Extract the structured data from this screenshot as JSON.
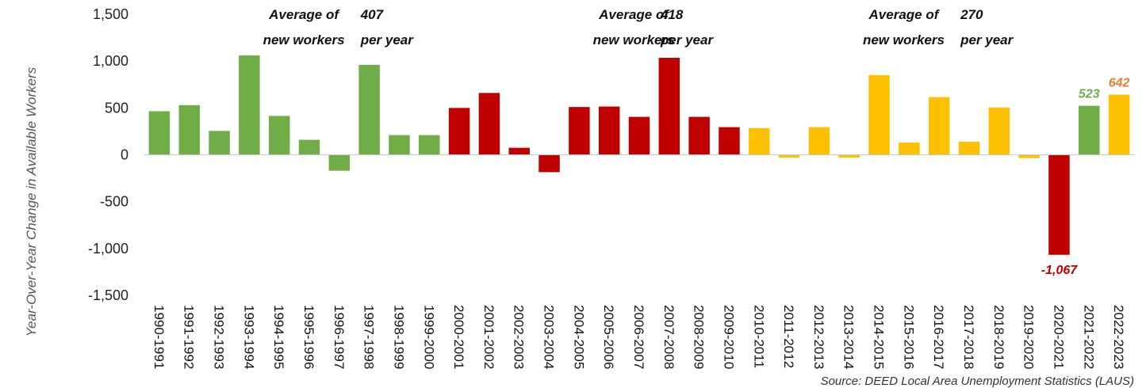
{
  "chart_data": {
    "type": "bar",
    "ylabel": "Year-Over-Year Change in Available Workers",
    "ylim": [
      -1500,
      1500
    ],
    "yticks": [
      "1,500",
      "1,000",
      "500",
      "0",
      "-500",
      "-1,000",
      "-1,500"
    ],
    "ytick_values": [
      1500,
      1000,
      500,
      0,
      -500,
      -1000,
      -1500
    ],
    "grid": false,
    "categories": [
      "1990-1991",
      "1991-1992",
      "1992-1993",
      "1993-1994",
      "1994-1995",
      "1995-1996",
      "1996-1997",
      "1997-1998",
      "1998-1999",
      "1999-2000",
      "2000-2001",
      "2001-2002",
      "2002-2003",
      "2003-2004",
      "2004-2005",
      "2005-2006",
      "2006-2007",
      "2007-2008",
      "2008-2009",
      "2009-2010",
      "2010-2011",
      "2011-2012",
      "2012-2013",
      "2013-2014",
      "2014-2015",
      "2015-2016",
      "2016-2017",
      "2017-2018",
      "2018-2019",
      "2019-2020",
      "2020-2021",
      "2021-2022",
      "2022-2023"
    ],
    "values": [
      465,
      530,
      255,
      1060,
      415,
      160,
      -170,
      960,
      210,
      210,
      500,
      660,
      75,
      -185,
      510,
      515,
      405,
      1035,
      405,
      295,
      285,
      -30,
      295,
      -30,
      850,
      130,
      615,
      140,
      505,
      -35,
      -1067,
      523,
      642
    ],
    "bar_colors": [
      "#70ad47",
      "#70ad47",
      "#70ad47",
      "#70ad47",
      "#70ad47",
      "#70ad47",
      "#70ad47",
      "#70ad47",
      "#70ad47",
      "#70ad47",
      "#c00000",
      "#c00000",
      "#c00000",
      "#c00000",
      "#c00000",
      "#c00000",
      "#c00000",
      "#c00000",
      "#c00000",
      "#c00000",
      "#ffc000",
      "#ffc000",
      "#ffc000",
      "#ffc000",
      "#ffc000",
      "#ffc000",
      "#ffc000",
      "#ffc000",
      "#ffc000",
      "#ffc000",
      "#c00000",
      "#70ad47",
      "#ffc000"
    ],
    "data_labels": [
      {
        "index": 30,
        "text": "-1,067",
        "color": "#c00000"
      },
      {
        "index": 31,
        "text": "523",
        "color": "#70ad47"
      },
      {
        "index": 32,
        "text": "642",
        "color": "#ed7d31"
      }
    ],
    "annotations": [
      {
        "col1": 4,
        "col2": 7,
        "line1a": "Average of",
        "line1b": "407",
        "line2a": "new workers",
        "line2b": "per year"
      },
      {
        "col1": 15,
        "col2": 17,
        "line1a": "Average of",
        "line1b": "418",
        "line2a": "new workers",
        "line2b": "per year"
      },
      {
        "col1": 24,
        "col2": 27,
        "line1a": "Average of",
        "line1b": "270",
        "line2a": "new workers",
        "line2b": "per year"
      }
    ],
    "source": "Source: DEED Local Area Unemployment Statistics (LAUS)"
  }
}
